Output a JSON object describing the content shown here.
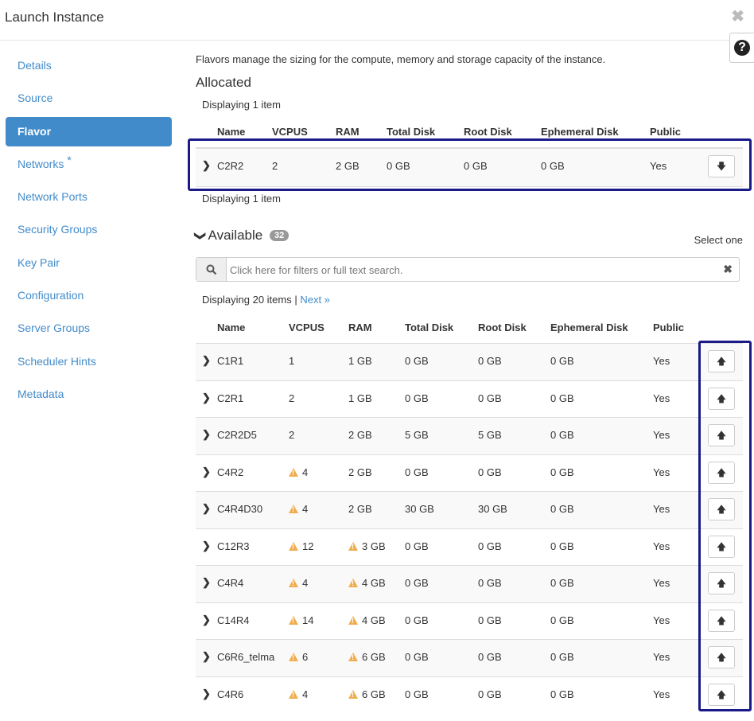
{
  "title": "Launch Instance",
  "nav": [
    {
      "label": "Details"
    },
    {
      "label": "Source"
    },
    {
      "label": "Flavor",
      "active": true
    },
    {
      "label": "Networks",
      "required": "*"
    },
    {
      "label": "Network Ports"
    },
    {
      "label": "Security Groups"
    },
    {
      "label": "Key Pair"
    },
    {
      "label": "Configuration"
    },
    {
      "label": "Server Groups"
    },
    {
      "label": "Scheduler Hints"
    },
    {
      "label": "Metadata"
    }
  ],
  "intro": "Flavors manage the sizing for the compute, memory and storage capacity of the instance.",
  "allocated": {
    "heading": "Allocated",
    "displaying": "Displaying 1 item",
    "columns": [
      "Name",
      "VCPUS",
      "RAM",
      "Total Disk",
      "Root Disk",
      "Ephemeral Disk",
      "Public"
    ],
    "rows": [
      {
        "name": "C2R2",
        "vcpus": "2",
        "ram": "2 GB",
        "total_disk": "0 GB",
        "root_disk": "0 GB",
        "ephemeral_disk": "0 GB",
        "public": "Yes"
      }
    ]
  },
  "available": {
    "heading": "Available",
    "count": "32",
    "select_one": "Select one",
    "search_placeholder": "Click here for filters or full text search.",
    "displaying": "Displaying 20 items |",
    "next": "Next »",
    "columns": [
      "Name",
      "VCPUS",
      "RAM",
      "Total Disk",
      "Root Disk",
      "Ephemeral Disk",
      "Public"
    ],
    "rows": [
      {
        "name": "C1R1",
        "vcpus": "1",
        "vcpus_warn": false,
        "ram": "1 GB",
        "ram_warn": false,
        "total_disk": "0 GB",
        "root_disk": "0 GB",
        "ephemeral_disk": "0 GB",
        "public": "Yes"
      },
      {
        "name": "C2R1",
        "vcpus": "2",
        "vcpus_warn": false,
        "ram": "1 GB",
        "ram_warn": false,
        "total_disk": "0 GB",
        "root_disk": "0 GB",
        "ephemeral_disk": "0 GB",
        "public": "Yes"
      },
      {
        "name": "C2R2D5",
        "vcpus": "2",
        "vcpus_warn": false,
        "ram": "2 GB",
        "ram_warn": false,
        "total_disk": "5 GB",
        "root_disk": "5 GB",
        "ephemeral_disk": "0 GB",
        "public": "Yes"
      },
      {
        "name": "C4R2",
        "vcpus": "4",
        "vcpus_warn": true,
        "ram": "2 GB",
        "ram_warn": false,
        "total_disk": "0 GB",
        "root_disk": "0 GB",
        "ephemeral_disk": "0 GB",
        "public": "Yes"
      },
      {
        "name": "C4R4D30",
        "vcpus": "4",
        "vcpus_warn": true,
        "ram": "2 GB",
        "ram_warn": false,
        "total_disk": "30 GB",
        "root_disk": "30 GB",
        "ephemeral_disk": "0 GB",
        "public": "Yes"
      },
      {
        "name": "C12R3",
        "vcpus": "12",
        "vcpus_warn": true,
        "ram": "3 GB",
        "ram_warn": true,
        "total_disk": "0 GB",
        "root_disk": "0 GB",
        "ephemeral_disk": "0 GB",
        "public": "Yes"
      },
      {
        "name": "C4R4",
        "vcpus": "4",
        "vcpus_warn": true,
        "ram": "4 GB",
        "ram_warn": true,
        "total_disk": "0 GB",
        "root_disk": "0 GB",
        "ephemeral_disk": "0 GB",
        "public": "Yes"
      },
      {
        "name": "C14R4",
        "vcpus": "14",
        "vcpus_warn": true,
        "ram": "4 GB",
        "ram_warn": true,
        "total_disk": "0 GB",
        "root_disk": "0 GB",
        "ephemeral_disk": "0 GB",
        "public": "Yes"
      },
      {
        "name": "C6R6_telma",
        "vcpus": "6",
        "vcpus_warn": true,
        "ram": "6 GB",
        "ram_warn": true,
        "total_disk": "0 GB",
        "root_disk": "0 GB",
        "ephemeral_disk": "0 GB",
        "public": "Yes"
      },
      {
        "name": "C4R6",
        "vcpus": "4",
        "vcpus_warn": true,
        "ram": "6 GB",
        "ram_warn": true,
        "total_disk": "0 GB",
        "root_disk": "0 GB",
        "ephemeral_disk": "0 GB",
        "public": "Yes"
      }
    ]
  },
  "colors": {
    "accent": "#428bca",
    "highlight_box": "#1a1a8a",
    "warning": "#f0ad4e"
  },
  "icons": {
    "close": "close-icon",
    "help": "question-circle-icon",
    "expand": "chevron-right-icon",
    "collapse": "chevron-down-icon",
    "search": "search-icon",
    "deallocate": "arrow-down-icon",
    "allocate": "arrow-up-icon",
    "warning": "warning-icon"
  }
}
